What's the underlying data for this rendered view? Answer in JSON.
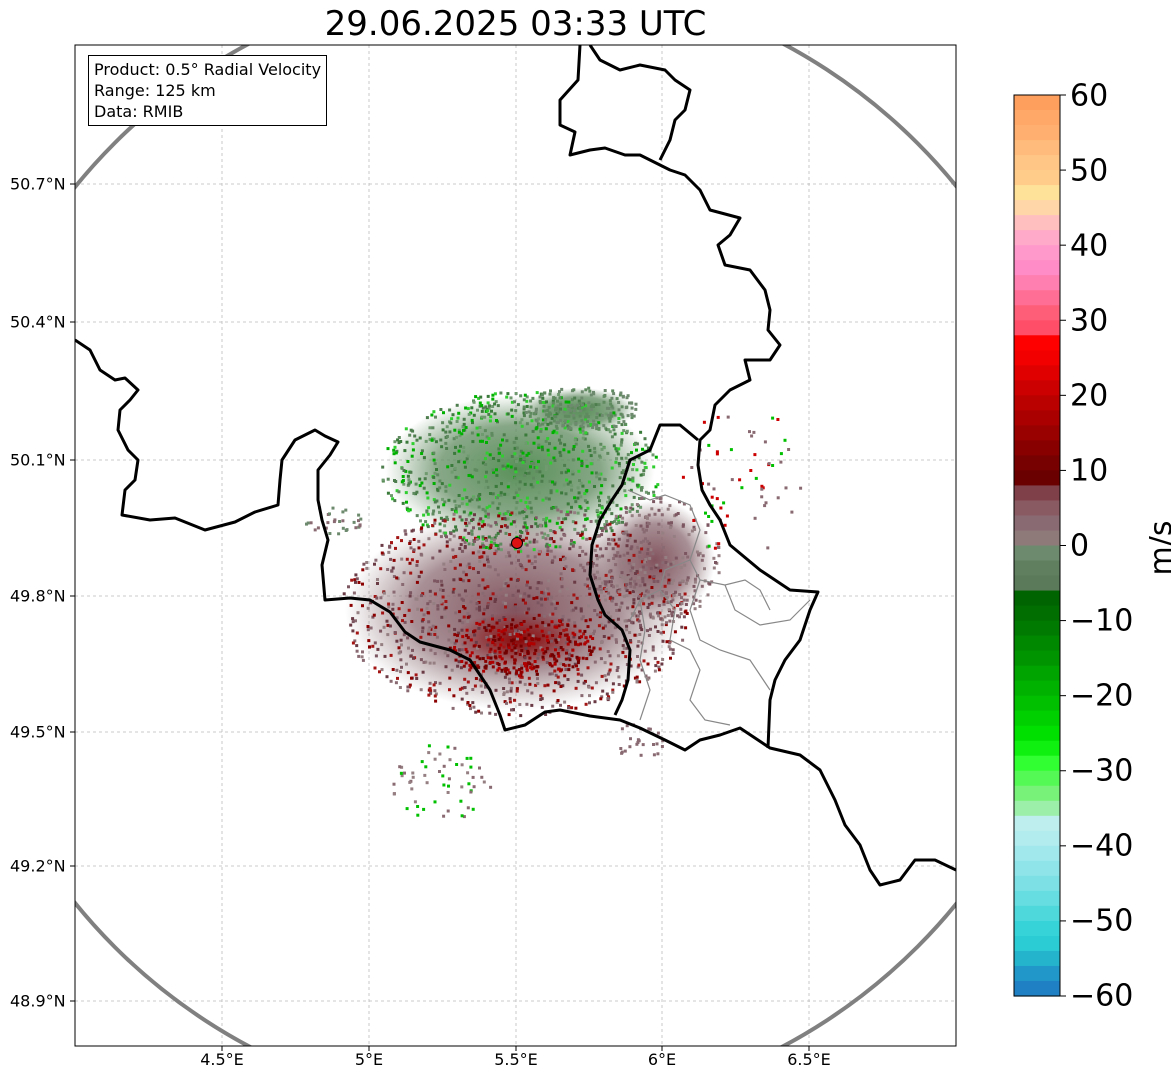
{
  "title": "29.06.2025 03:33 UTC",
  "info": {
    "product": "Product: 0.5° Radial Velocity",
    "range": "Range: 125 km",
    "data": "Data: RMIB"
  },
  "lat_labels": [
    "50.7°N",
    "50.4°N",
    "50.1°N",
    "49.8°N",
    "49.5°N",
    "49.2°N",
    "48.9°N"
  ],
  "lon_labels": [
    "4.5°E",
    "5°E",
    "5.5°E",
    "6°E",
    "6.5°E"
  ],
  "colorbar": {
    "unit": "m/s",
    "ticks": [
      "60",
      "50",
      "40",
      "30",
      "20",
      "10",
      "0",
      "−10",
      "−20",
      "−30",
      "−40",
      "−50",
      "−60"
    ],
    "range": [
      -60,
      60
    ]
  },
  "radar_site": {
    "lon": 5.505,
    "lat": 49.914,
    "marker_color": "#dd1111"
  },
  "range_ring_km": 125
}
